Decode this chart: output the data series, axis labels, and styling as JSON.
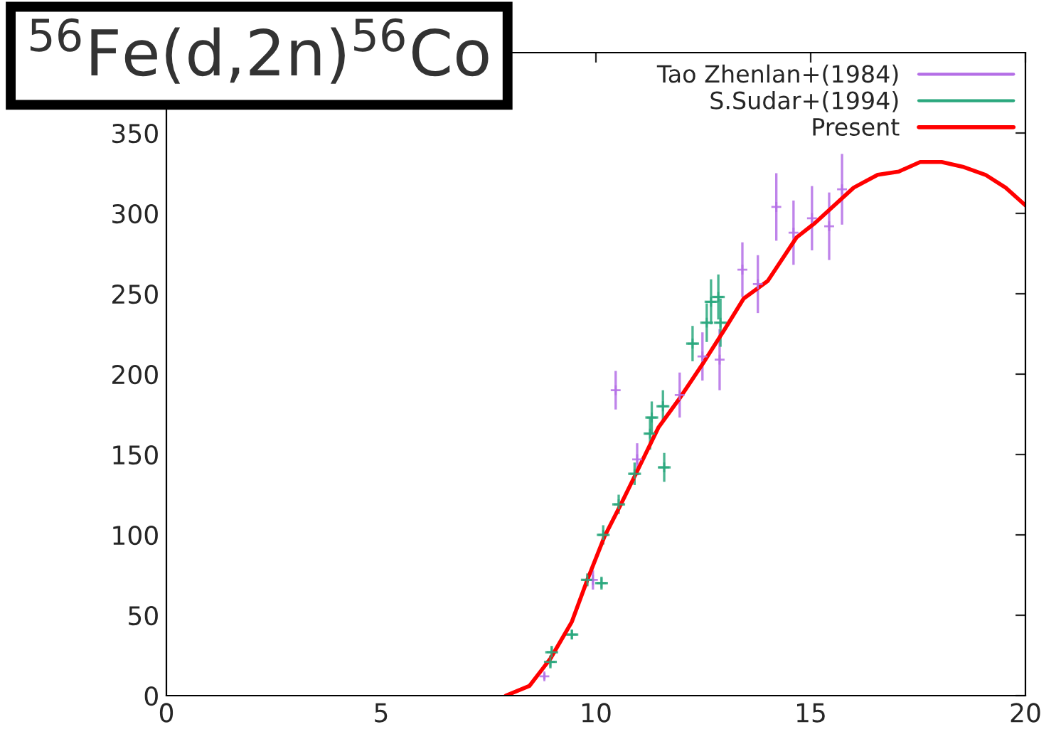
{
  "chart_data": {
    "type": "scatter",
    "title": "$^{56}$Fe(d,2n)$^{56}$Co",
    "xlim": [
      0,
      20
    ],
    "xticks": [
      0,
      5,
      10,
      15,
      20
    ],
    "ylim": [
      0,
      400
    ],
    "yticks": [
      0,
      50,
      100,
      150,
      200,
      250,
      300,
      350
    ],
    "grid": false,
    "legend": "top right",
    "series": [
      {
        "name": "Tao Zhenlan+(1984)",
        "color": "#b46ee6",
        "marker": "cross",
        "x": [
          8.8,
          9.93,
          10.46,
          10.96,
          11.95,
          12.48,
          12.88,
          13.41,
          13.77,
          14.2,
          14.6,
          15.03,
          15.43,
          15.73
        ],
        "values": [
          12,
          72,
          190,
          147,
          187,
          211,
          209,
          265,
          256,
          304,
          288,
          297,
          292,
          315
        ],
        "errors": [
          2,
          6,
          12,
          10,
          14,
          15,
          19,
          17,
          18,
          21,
          20,
          20,
          21,
          22
        ]
      },
      {
        "name": "S.Sudar+(1994)",
        "color": "#2aa87e",
        "marker": "cross",
        "x": [
          8.94,
          8.97,
          9.44,
          9.8,
          10.13,
          10.17,
          10.53,
          10.9,
          11.26,
          11.3,
          11.56,
          11.59,
          12.25,
          12.58,
          12.68,
          12.85,
          12.9
        ],
        "values": [
          21,
          27,
          38,
          72,
          70,
          100,
          119,
          138,
          163,
          173,
          180,
          142,
          219,
          232,
          245,
          248,
          232
        ],
        "errors": [
          4,
          4,
          3,
          4,
          4,
          6,
          6,
          7,
          10,
          10,
          10,
          9,
          11,
          12,
          14,
          14,
          15
        ],
        "xerrors": [
          0.15,
          0.15,
          0.15,
          0.15,
          0.15,
          0.15,
          0.15,
          0.15,
          0.15,
          0.15,
          0.15,
          0.15,
          0.15,
          0.15,
          0.15,
          0.15,
          0.15
        ]
      },
      {
        "name": "Present",
        "type": "line",
        "color": "#ff0000",
        "line_style": "solid",
        "x": [
          7.9,
          8.45,
          8.94,
          9.44,
          9.8,
          10.2,
          10.6,
          10.93,
          11.46,
          11.95,
          12.5,
          13.0,
          13.44,
          14.0,
          14.67,
          15.1,
          16.0,
          16.56,
          17.05,
          17.55,
          18.05,
          18.54,
          19.07,
          19.54,
          20.0
        ],
        "values": [
          0,
          6,
          23,
          46,
          72,
          99,
          120,
          138,
          167,
          185,
          207,
          228,
          247,
          258,
          285,
          294,
          316,
          324,
          326,
          332,
          332,
          329,
          324,
          316,
          305
        ]
      }
    ]
  }
}
